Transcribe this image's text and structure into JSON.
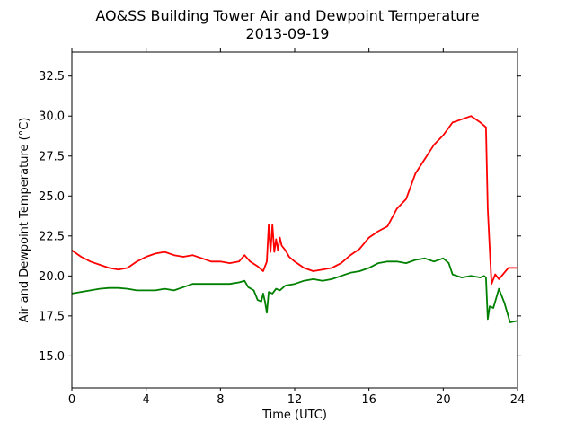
{
  "chart_data": {
    "type": "line",
    "title": "AO&SS Building Tower Air and Dewpoint Temperature",
    "subtitle": "2013-09-19",
    "xlabel": "Time (UTC)",
    "ylabel": "Air and Dewpoint Temperature (°C)",
    "xlim": [
      0,
      24
    ],
    "ylim": [
      13.0,
      34.0
    ],
    "xticks": [
      0,
      4,
      8,
      12,
      16,
      20,
      24
    ],
    "yticks": [
      15.0,
      17.5,
      20.0,
      22.5,
      25.0,
      27.5,
      30.0,
      32.5
    ],
    "grid": false,
    "series": [
      {
        "color": "#ff0000",
        "x": [
          0,
          0.5,
          1,
          1.5,
          2,
          2.5,
          3,
          3.5,
          4,
          4.5,
          5,
          5.5,
          6,
          6.5,
          7,
          7.5,
          8,
          8.5,
          9,
          9.3,
          9.6,
          10,
          10.3,
          10.5,
          10.6,
          10.7,
          10.8,
          10.9,
          11.0,
          11.1,
          11.2,
          11.3,
          11.5,
          11.7,
          12,
          12.5,
          13,
          13.5,
          14,
          14.5,
          15,
          15.5,
          16,
          16.5,
          17,
          17.5,
          18,
          18.5,
          19,
          19.5,
          20,
          20.5,
          21,
          21.5,
          22,
          22.3,
          22.4,
          22.5,
          22.6,
          22.8,
          23,
          23.5,
          24
        ],
        "y": [
          21.6,
          21.2,
          20.9,
          20.7,
          20.5,
          20.4,
          20.5,
          20.9,
          21.2,
          21.4,
          21.5,
          21.3,
          21.2,
          21.3,
          21.1,
          20.9,
          20.9,
          20.8,
          20.9,
          21.3,
          20.9,
          20.6,
          20.3,
          20.9,
          23.2,
          21.5,
          23.2,
          21.5,
          22.3,
          21.6,
          22.4,
          21.9,
          21.6,
          21.2,
          20.9,
          20.5,
          20.3,
          20.4,
          20.5,
          20.8,
          21.3,
          21.7,
          22.4,
          22.8,
          23.1,
          24.2,
          24.8,
          26.4,
          27.3,
          28.2,
          28.8,
          29.6,
          29.8,
          30.0,
          29.6,
          29.3,
          24.2,
          21.8,
          19.5,
          20.1,
          19.8,
          20.5,
          20.5
        ]
      },
      {
        "color": "#008000",
        "x": [
          0,
          0.5,
          1,
          1.5,
          2,
          2.5,
          3,
          3.5,
          4,
          4.5,
          5,
          5.5,
          6,
          6.5,
          7,
          7.5,
          8,
          8.5,
          9,
          9.3,
          9.5,
          9.8,
          10,
          10.2,
          10.3,
          10.4,
          10.5,
          10.6,
          10.8,
          11.0,
          11.2,
          11.5,
          12,
          12.5,
          13,
          13.5,
          14,
          14.5,
          15,
          15.5,
          16,
          16.5,
          17,
          17.5,
          18,
          18.5,
          19,
          19.5,
          20,
          20.3,
          20.5,
          21,
          21.5,
          22,
          22.2,
          22.3,
          22.4,
          22.5,
          22.7,
          23,
          23.3,
          23.6,
          24
        ],
        "y": [
          18.9,
          19.0,
          19.1,
          19.2,
          19.25,
          19.25,
          19.2,
          19.1,
          19.1,
          19.1,
          19.2,
          19.1,
          19.3,
          19.5,
          19.5,
          19.5,
          19.5,
          19.5,
          19.6,
          19.7,
          19.3,
          19.1,
          18.5,
          18.4,
          18.9,
          18.4,
          17.7,
          19.0,
          18.9,
          19.2,
          19.1,
          19.4,
          19.5,
          19.7,
          19.8,
          19.7,
          19.8,
          20.0,
          20.2,
          20.3,
          20.5,
          20.8,
          20.9,
          20.9,
          20.8,
          21.0,
          21.1,
          20.9,
          21.1,
          20.8,
          20.1,
          19.9,
          20.0,
          19.9,
          20.0,
          19.9,
          17.3,
          18.1,
          18.0,
          19.2,
          18.3,
          17.1,
          17.2
        ]
      }
    ]
  }
}
